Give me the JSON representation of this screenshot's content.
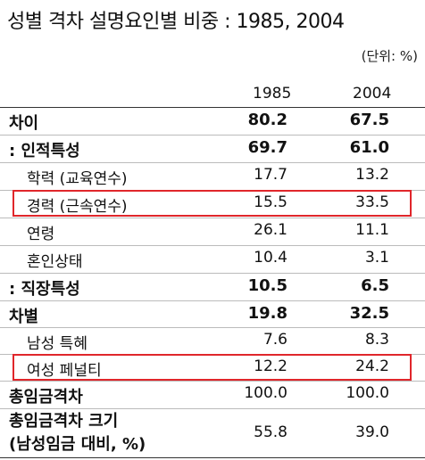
{
  "title": "성별 격차 설명요인별 비중 : 1985, 2004",
  "unit": "(단위: %)",
  "columns": [
    "1985",
    "2004"
  ],
  "rows": [
    {
      "label": "차이",
      "v1985": "80.2",
      "v2004": "67.5"
    },
    {
      "label": ": 인적특성",
      "v1985": "69.7",
      "v2004": "61.0"
    },
    {
      "label": "학력 (교육연수)",
      "v1985": "17.7",
      "v2004": "13.2"
    },
    {
      "label": "경력 (근속연수)",
      "v1985": "15.5",
      "v2004": "33.5"
    },
    {
      "label": "연령",
      "v1985": "26.1",
      "v2004": "11.1"
    },
    {
      "label": "혼인상태",
      "v1985": "10.4",
      "v2004": "3.1"
    },
    {
      "label": ": 직장특성",
      "v1985": "10.5",
      "v2004": "6.5"
    },
    {
      "label": "차별",
      "v1985": "19.8",
      "v2004": "32.5"
    },
    {
      "label": "남성 특혜",
      "v1985": "7.6",
      "v2004": "8.3"
    },
    {
      "label": "여성 페널티",
      "v1985": "12.2",
      "v2004": "24.2"
    },
    {
      "label": "총임금격차",
      "v1985": "100.0",
      "v2004": "100.0"
    },
    {
      "label_line1": "총임금격차 크기",
      "label_line2": "(남성임금 대비, %)",
      "v1985": "55.8",
      "v2004": "39.0"
    }
  ],
  "highlight_color": "#e0262b"
}
